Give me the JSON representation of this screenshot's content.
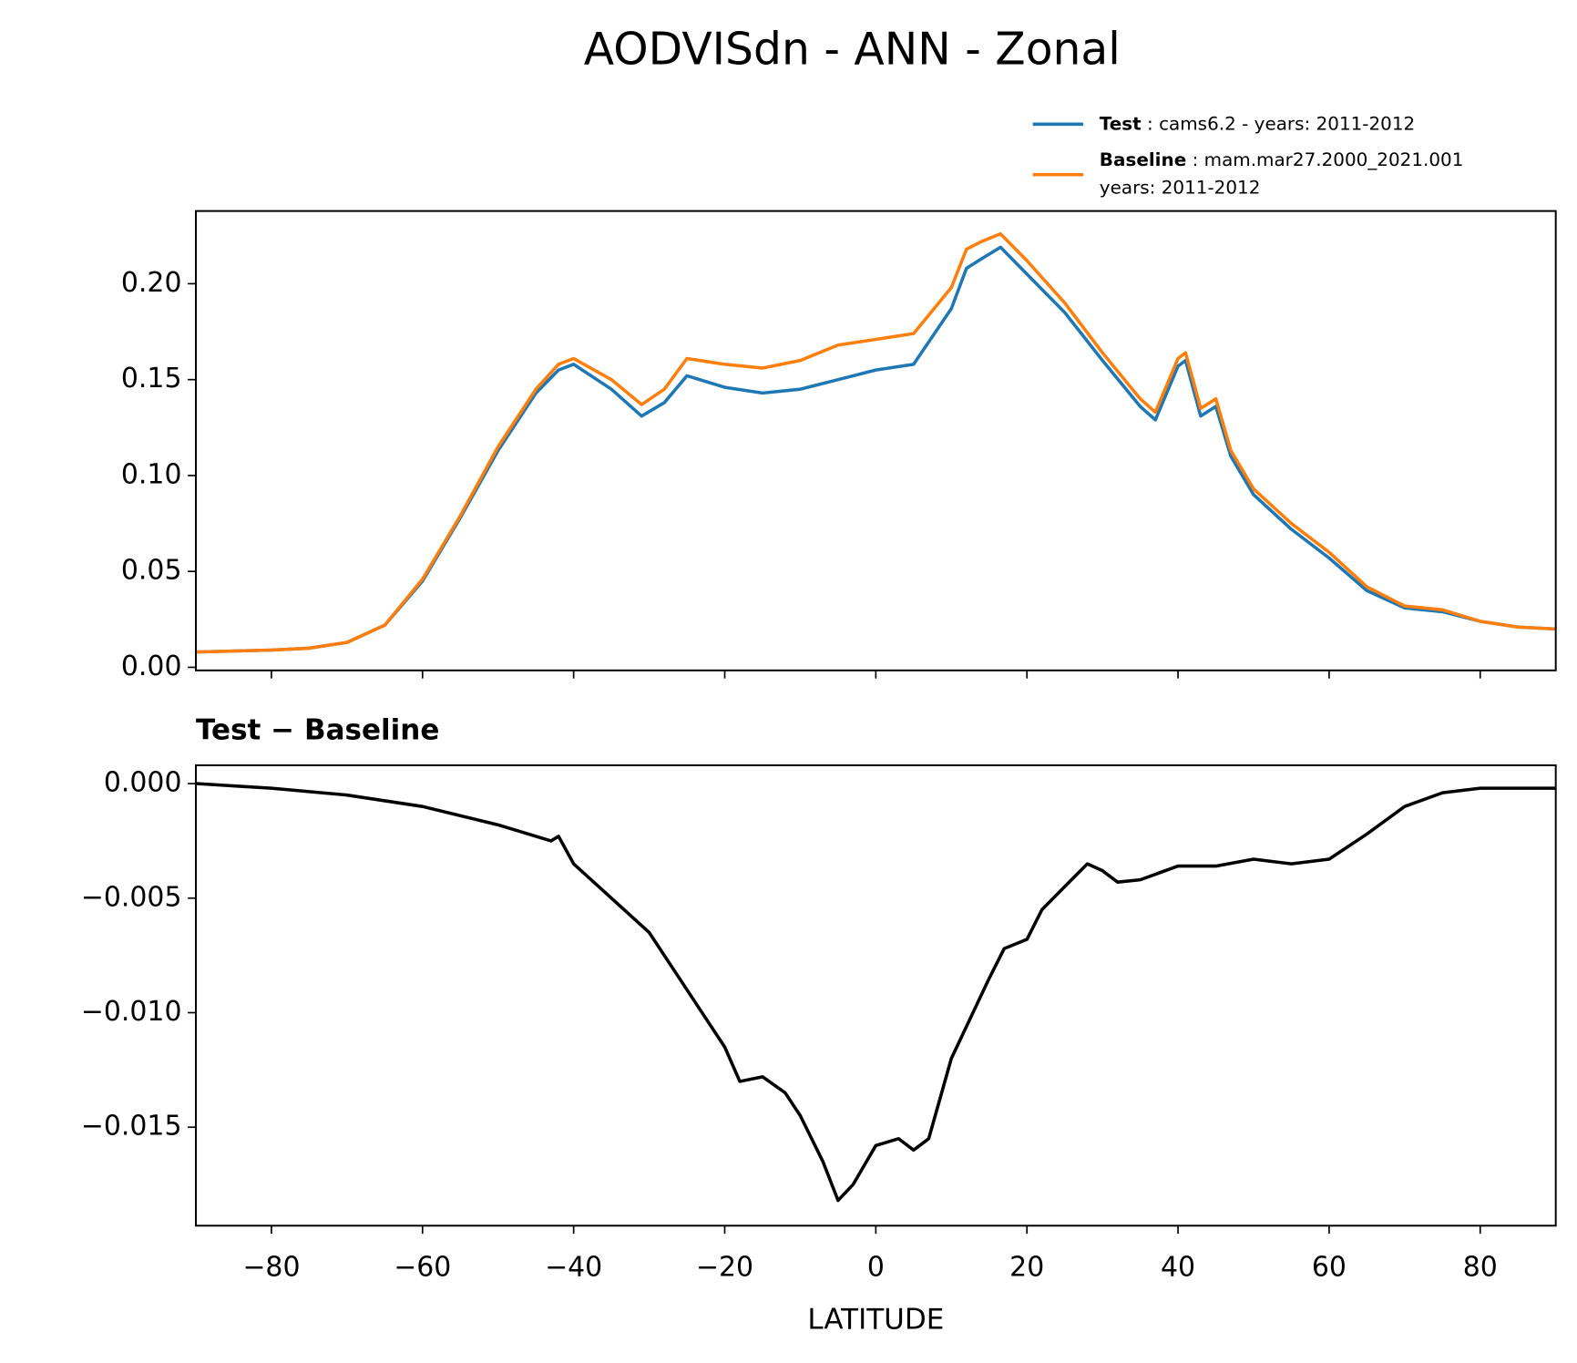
{
  "title": "AODVISdn - ANN - Zonal",
  "chart_data": [
    {
      "type": "line",
      "legend": "upper right",
      "x": [
        -90,
        -80,
        -75,
        -70,
        -65,
        -60,
        -55,
        -50,
        -45,
        -42,
        -40,
        -35,
        -31,
        -28,
        -25,
        -20,
        -15,
        -10,
        -5,
        0,
        5,
        10,
        12,
        14,
        16.5,
        20,
        25,
        30,
        35,
        37,
        40,
        41,
        43,
        45,
        47,
        50,
        55,
        60,
        65,
        70,
        75,
        80,
        85,
        90
      ],
      "series": [
        {
          "name": "Test",
          "description": [
            "cams6.2 - years: 2011-2012"
          ],
          "color": "#1f77b4",
          "values": [
            0.008,
            0.009,
            0.01,
            0.013,
            0.022,
            0.045,
            0.078,
            0.113,
            0.143,
            0.155,
            0.158,
            0.145,
            0.131,
            0.138,
            0.152,
            0.146,
            0.143,
            0.145,
            0.15,
            0.155,
            0.158,
            0.187,
            0.208,
            0.213,
            0.219,
            0.205,
            0.185,
            0.16,
            0.136,
            0.129,
            0.157,
            0.16,
            0.131,
            0.136,
            0.11,
            0.09,
            0.072,
            0.057,
            0.04,
            0.031,
            0.029,
            0.024,
            0.021,
            0.02
          ]
        },
        {
          "name": "Baseline",
          "description": [
            "mam.mar27.2000_2021.001",
            "years: 2011-2012"
          ],
          "color": "#ff7f0e",
          "values": [
            0.008,
            0.009,
            0.01,
            0.013,
            0.022,
            0.046,
            0.079,
            0.115,
            0.145,
            0.158,
            0.161,
            0.15,
            0.137,
            0.145,
            0.161,
            0.158,
            0.156,
            0.16,
            0.168,
            0.171,
            0.174,
            0.198,
            0.218,
            0.222,
            0.226,
            0.212,
            0.19,
            0.164,
            0.14,
            0.133,
            0.161,
            0.164,
            0.135,
            0.14,
            0.113,
            0.093,
            0.075,
            0.06,
            0.042,
            0.032,
            0.03,
            0.024,
            0.021,
            0.02
          ]
        }
      ],
      "xlim": [
        -90,
        90
      ],
      "xticks": [
        -80,
        -60,
        -40,
        -20,
        0,
        20,
        40,
        60,
        80
      ],
      "ylim": [
        -0.0016,
        0.2379
      ],
      "yticks": [
        {
          "value": 0,
          "label": "0.00"
        },
        0.05,
        {
          "value": 0.1,
          "label": "0.10"
        },
        0.15,
        {
          "value": 0.2,
          "label": "0.20"
        }
      ]
    },
    {
      "type": "line",
      "title": "Test − Baseline",
      "xlabel": "LATITUDE",
      "x": [
        -90,
        -80,
        -70,
        -60,
        -50,
        -43,
        -42,
        -40,
        -35,
        -30,
        -25,
        -20,
        -18,
        -15,
        -12,
        -10,
        -7,
        -5,
        -3,
        0,
        3,
        5,
        7,
        10,
        15,
        17,
        20,
        22,
        25,
        28,
        30,
        32,
        35,
        40,
        45,
        50,
        55,
        60,
        65,
        70,
        75,
        80,
        85,
        90
      ],
      "series": [
        {
          "color": "#000000",
          "values": [
            0,
            -0.0002,
            -0.0005,
            -0.001,
            -0.0018,
            -0.0025,
            -0.0023,
            -0.0035,
            -0.005,
            -0.0065,
            -0.009,
            -0.0115,
            -0.013,
            -0.0128,
            -0.0135,
            -0.0145,
            -0.0165,
            -0.0182,
            -0.0175,
            -0.0158,
            -0.0155,
            -0.016,
            -0.0155,
            -0.012,
            -0.0085,
            -0.0072,
            -0.0068,
            -0.0055,
            -0.0045,
            -0.0035,
            -0.0038,
            -0.0043,
            -0.0042,
            -0.0036,
            -0.0036,
            -0.0033,
            -0.0035,
            -0.0033,
            -0.0022,
            -0.001,
            -0.0004,
            -0.0002,
            -0.0002,
            -0.0002
          ]
        }
      ],
      "xlim": [
        -90,
        90
      ],
      "xticks": [
        {
          "value": -80,
          "label": "−80"
        },
        {
          "value": -60,
          "label": "−60"
        },
        {
          "value": -40,
          "label": "−40"
        },
        {
          "value": -20,
          "label": "−20"
        },
        0,
        20,
        40,
        60,
        80
      ],
      "ylim": [
        -0.0193,
        0.0008
      ],
      "yticks": [
        {
          "value": 0,
          "label": "0.000"
        },
        {
          "value": -0.005,
          "label": "−0.005"
        },
        {
          "value": -0.01,
          "label": "−0.010"
        },
        {
          "value": -0.015,
          "label": "−0.015"
        }
      ]
    }
  ]
}
